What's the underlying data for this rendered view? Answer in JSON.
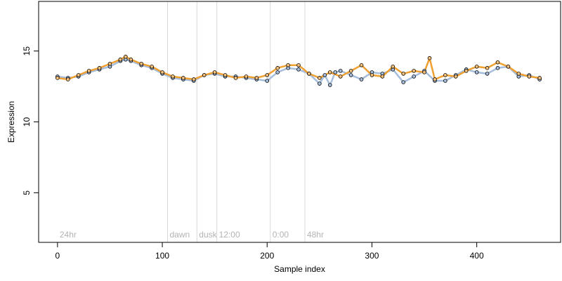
{
  "chart_data": {
    "type": "scatter",
    "xlabel": "Sample index",
    "ylabel": "Expression",
    "xlim": [
      -18,
      480
    ],
    "ylim": [
      1.5,
      18.5
    ],
    "x_ticks": [
      0,
      100,
      200,
      300,
      400
    ],
    "y_ticks": [
      5,
      10,
      15
    ],
    "sections": [
      {
        "label": "24hr",
        "x": 0
      },
      {
        "label": "dawn",
        "x": 105
      },
      {
        "label": "dusk",
        "x": 133
      },
      {
        "label": "12:00",
        "x": 152
      },
      {
        "label": "0:00",
        "x": 203
      },
      {
        "label": "48hr",
        "x": 236
      }
    ],
    "colors": {
      "point_fill_a": "#a6bddb",
      "point_fill_b": "#f4c07a",
      "line_a": "#a6bddb",
      "line_b": "#f0a030",
      "vline": "#d9d9d9",
      "section_label": "#b3b3b3"
    },
    "series_a": {
      "x": [
        0,
        10,
        20,
        30,
        40,
        50,
        60,
        65,
        70,
        80,
        90,
        100,
        110,
        120,
        130,
        140,
        150,
        160,
        170,
        180,
        190,
        200,
        210,
        220,
        230,
        240,
        250,
        255,
        260,
        265,
        270,
        280,
        290,
        300,
        310,
        320,
        330,
        340,
        350,
        360,
        370,
        380,
        390,
        400,
        410,
        420,
        430,
        440,
        450,
        460
      ],
      "y": [
        13.2,
        13.1,
        13.2,
        13.5,
        13.7,
        13.9,
        14.3,
        14.4,
        14.3,
        14.0,
        13.8,
        13.4,
        13.1,
        13.0,
        12.9,
        13.3,
        13.4,
        13.2,
        13.2,
        13.1,
        13.0,
        12.9,
        13.5,
        13.8,
        13.7,
        13.4,
        12.7,
        13.3,
        12.6,
        13.5,
        13.6,
        13.3,
        13.0,
        13.5,
        13.4,
        13.7,
        12.8,
        13.2,
        13.6,
        12.9,
        12.9,
        13.3,
        13.7,
        13.5,
        13.4,
        13.8,
        13.9,
        13.2,
        13.3,
        13.0
      ]
    },
    "series_b": {
      "x": [
        0,
        10,
        20,
        30,
        40,
        50,
        60,
        65,
        70,
        80,
        90,
        100,
        110,
        120,
        130,
        140,
        150,
        160,
        170,
        180,
        190,
        200,
        210,
        220,
        230,
        240,
        250,
        260,
        270,
        280,
        290,
        300,
        310,
        320,
        330,
        340,
        350,
        355,
        360,
        370,
        380,
        390,
        400,
        410,
        420,
        430,
        440,
        450,
        460
      ],
      "y": [
        13.1,
        13.0,
        13.3,
        13.6,
        13.8,
        14.1,
        14.4,
        14.6,
        14.4,
        14.1,
        13.9,
        13.5,
        13.2,
        13.1,
        13.0,
        13.3,
        13.5,
        13.3,
        13.1,
        13.2,
        13.1,
        13.3,
        13.8,
        14.0,
        14.0,
        13.4,
        13.1,
        13.5,
        13.2,
        13.6,
        14.0,
        13.3,
        13.2,
        13.9,
        13.4,
        13.6,
        13.5,
        14.5,
        13.0,
        13.3,
        13.2,
        13.6,
        13.9,
        13.8,
        14.2,
        13.9,
        13.4,
        13.2,
        13.1
      ]
    }
  }
}
